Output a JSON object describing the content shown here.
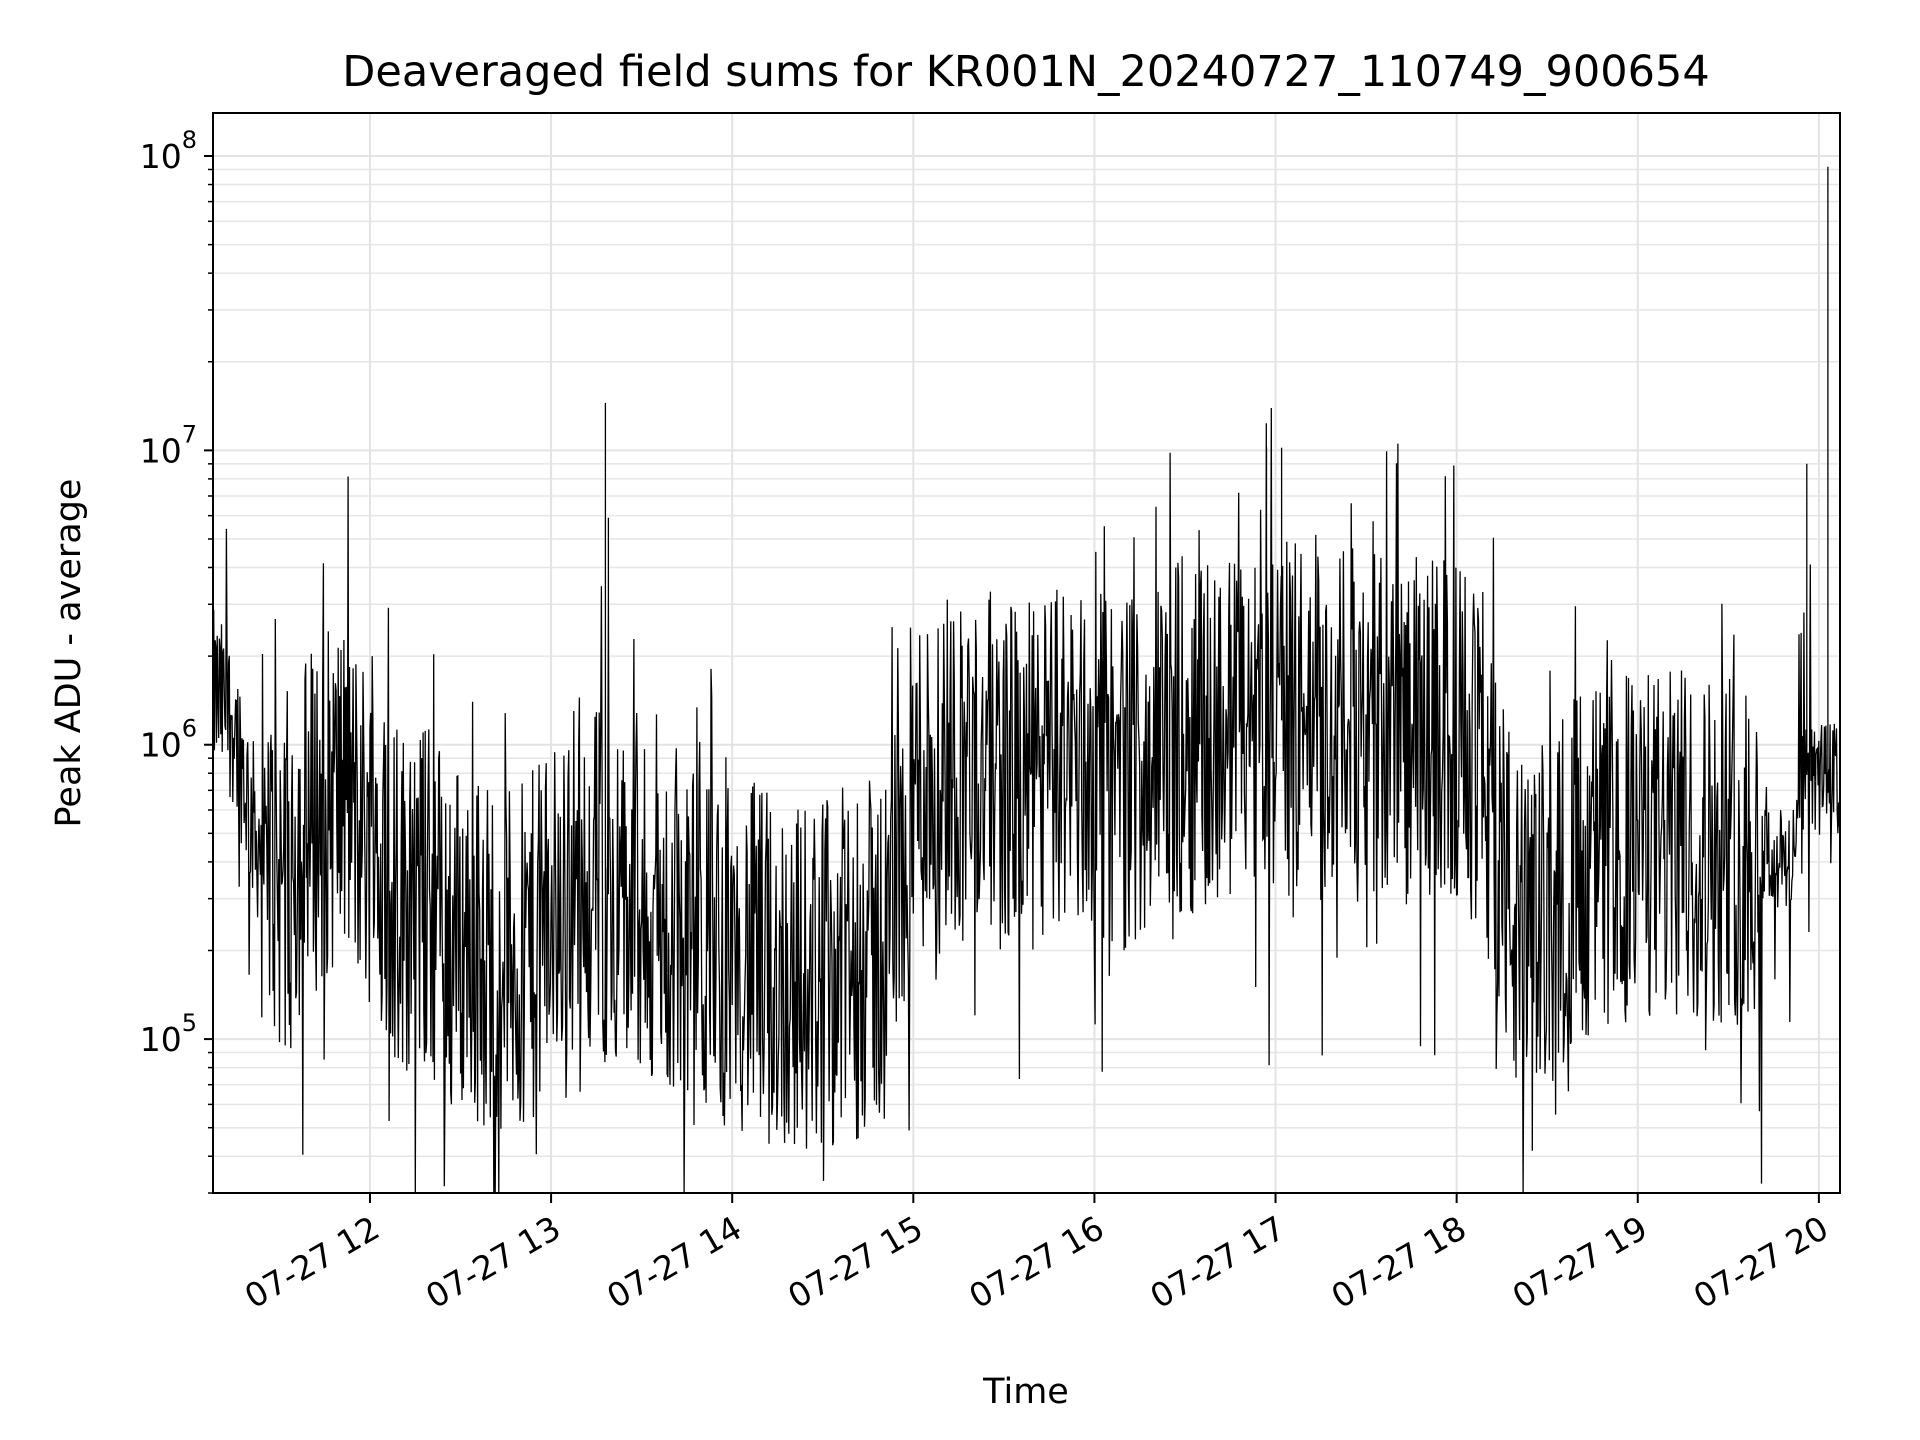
{
  "chart_data": {
    "type": "line",
    "title": "Deaveraged field sums for KR001N_20240727_110749_900654",
    "xlabel": "Time",
    "ylabel": "Peak ADU - average",
    "yscale": "log",
    "ylim": [
      30000,
      140000000
    ],
    "xlim": [
      "2024-07-27 11:08",
      "2024-07-27 20:07"
    ],
    "grid": true,
    "x_ticks": [
      {
        "value": "2024-07-27 12:00",
        "label": "07-27 12"
      },
      {
        "value": "2024-07-27 13:00",
        "label": "07-27 13"
      },
      {
        "value": "2024-07-27 14:00",
        "label": "07-27 14"
      },
      {
        "value": "2024-07-27 15:00",
        "label": "07-27 15"
      },
      {
        "value": "2024-07-27 16:00",
        "label": "07-27 16"
      },
      {
        "value": "2024-07-27 17:00",
        "label": "07-27 17"
      },
      {
        "value": "2024-07-27 18:00",
        "label": "07-27 18"
      },
      {
        "value": "2024-07-27 19:00",
        "label": "07-27 19"
      },
      {
        "value": "2024-07-27 20:00",
        "label": "07-27 20"
      }
    ],
    "y_ticks": [
      {
        "value": 100000,
        "base": "10",
        "exp": "5"
      },
      {
        "value": 1000000,
        "base": "10",
        "exp": "6"
      },
      {
        "value": 10000000,
        "base": "10",
        "exp": "7"
      },
      {
        "value": 100000000,
        "base": "10",
        "exp": "8"
      }
    ],
    "series": [
      {
        "color": "#000000",
        "x": [
          "2024-07-27 11:08",
          "2024-07-27 11:15",
          "2024-07-27 11:22",
          "2024-07-27 11:30",
          "2024-07-27 11:40",
          "2024-07-27 11:50",
          "2024-07-27 12:00",
          "2024-07-27 12:10",
          "2024-07-27 12:20",
          "2024-07-27 12:30",
          "2024-07-27 12:40",
          "2024-07-27 12:50",
          "2024-07-27 13:00",
          "2024-07-27 13:10",
          "2024-07-27 13:20",
          "2024-07-27 13:30",
          "2024-07-27 13:40",
          "2024-07-27 13:50",
          "2024-07-27 14:00",
          "2024-07-27 14:10",
          "2024-07-27 14:20",
          "2024-07-27 14:30",
          "2024-07-27 14:40",
          "2024-07-27 14:50",
          "2024-07-27 15:00",
          "2024-07-27 15:10",
          "2024-07-27 15:20",
          "2024-07-27 15:30",
          "2024-07-27 15:40",
          "2024-07-27 15:50",
          "2024-07-27 16:00",
          "2024-07-27 16:10",
          "2024-07-27 16:20",
          "2024-07-27 16:30",
          "2024-07-27 16:40",
          "2024-07-27 16:50",
          "2024-07-27 17:00",
          "2024-07-27 17:10",
          "2024-07-27 17:20",
          "2024-07-27 17:30",
          "2024-07-27 17:40",
          "2024-07-27 17:50",
          "2024-07-27 18:00",
          "2024-07-27 18:10",
          "2024-07-27 18:20",
          "2024-07-27 18:30",
          "2024-07-27 18:40",
          "2024-07-27 18:50",
          "2024-07-27 19:00",
          "2024-07-27 19:10",
          "2024-07-27 19:20",
          "2024-07-27 19:30",
          "2024-07-27 19:40",
          "2024-07-27 19:50",
          "2024-07-27 19:55",
          "2024-07-27 20:00",
          "2024-07-27 20:04",
          "2024-07-27 20:07"
        ],
        "y": [
          1500000,
          1200000,
          500000,
          350000,
          550000,
          700000,
          500000,
          300000,
          300000,
          220000,
          200000,
          180000,
          250000,
          420000,
          300000,
          250000,
          220000,
          200000,
          200000,
          180000,
          160000,
          170000,
          180000,
          200000,
          700000,
          900000,
          850000,
          800000,
          750000,
          950000,
          850000,
          800000,
          950000,
          1100000,
          1100000,
          1200000,
          1200000,
          1250000,
          1100000,
          1200000,
          1150000,
          1100000,
          1100000,
          800000,
          220000,
          260000,
          400000,
          420000,
          450000,
          450000,
          460000,
          450000,
          450000,
          380000,
          800000,
          750000,
          820000,
          700000
        ]
      }
    ],
    "annotations": [
      {
        "x": "2024-07-27 13:18",
        "y": 14500000
      },
      {
        "x": "2024-07-27 13:19",
        "y": 5900000
      },
      {
        "x": "2024-07-27 16:57",
        "y": 10300000
      },
      {
        "x": "2024-07-27 17:02",
        "y": 10200000
      },
      {
        "x": "2024-07-27 19:56",
        "y": 9000000
      },
      {
        "x": "2024-07-27 20:03",
        "y": 92000000
      }
    ]
  }
}
